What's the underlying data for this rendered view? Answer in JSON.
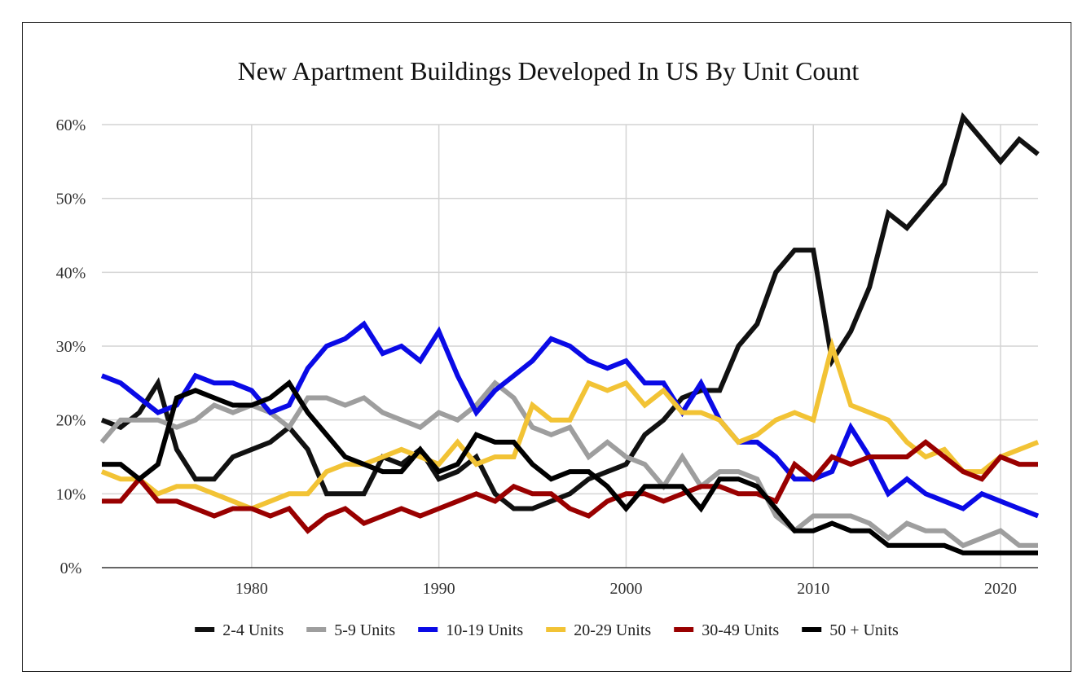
{
  "chart_data": {
    "type": "line",
    "title": "New Apartment Buildings Developed In US By Unit Count",
    "xlabel": "",
    "ylabel": "",
    "xlim": [
      1972,
      2022
    ],
    "ylim": [
      0,
      60
    ],
    "x_ticks": [
      1980,
      1990,
      2000,
      2010,
      2020
    ],
    "y_ticks": [
      0,
      10,
      20,
      30,
      40,
      50,
      60
    ],
    "y_tick_labels": [
      "0%",
      "10%",
      "20%",
      "30%",
      "40%",
      "50%",
      "60%"
    ],
    "grid": true,
    "legend_position": "bottom",
    "x": [
      1972,
      1973,
      1974,
      1975,
      1976,
      1977,
      1978,
      1979,
      1980,
      1981,
      1982,
      1983,
      1984,
      1985,
      1986,
      1987,
      1988,
      1989,
      1990,
      1991,
      1992,
      1993,
      1994,
      1995,
      1996,
      1997,
      1998,
      1999,
      2000,
      2001,
      2002,
      2003,
      2004,
      2005,
      2006,
      2007,
      2008,
      2009,
      2010,
      2011,
      2012,
      2013,
      2014,
      2015,
      2016,
      2017,
      2018,
      2019,
      2020,
      2021,
      2022
    ],
    "series": [
      {
        "name": "2-4 Units",
        "color": "#111111",
        "values": [
          20,
          19,
          21,
          25,
          16,
          12,
          12,
          15,
          16,
          17,
          19,
          16,
          10,
          10,
          10,
          15,
          14,
          16,
          12,
          13,
          15,
          10,
          8,
          8,
          9,
          10,
          12,
          13,
          14,
          18,
          20,
          23,
          24,
          24,
          30,
          33,
          40,
          43,
          43,
          28,
          32,
          38,
          48,
          46,
          49,
          52,
          61,
          58,
          55,
          58,
          56
        ]
      },
      {
        "name": "5-9 Units",
        "color": "#9e9e9e",
        "values": [
          17,
          20,
          20,
          20,
          19,
          20,
          22,
          21,
          22,
          21,
          19,
          23,
          23,
          22,
          23,
          21,
          20,
          19,
          21,
          20,
          22,
          25,
          23,
          19,
          18,
          19,
          15,
          17,
          15,
          14,
          11,
          15,
          11,
          13,
          13,
          12,
          7,
          5,
          7,
          7,
          7,
          6,
          4,
          6,
          5,
          5,
          3,
          4,
          5,
          3,
          3
        ]
      },
      {
        "name": "10-19 Units",
        "color": "#0a0ae6",
        "values": [
          26,
          25,
          23,
          21,
          22,
          26,
          25,
          25,
          24,
          21,
          22,
          27,
          30,
          31,
          33,
          29,
          30,
          28,
          32,
          26,
          21,
          24,
          26,
          28,
          31,
          30,
          28,
          27,
          28,
          25,
          25,
          21,
          25,
          20,
          17,
          17,
          15,
          12,
          12,
          13,
          19,
          15,
          10,
          12,
          10,
          9,
          8,
          10,
          9,
          8,
          7
        ]
      },
      {
        "name": "20-29 Units",
        "color": "#f2c335",
        "values": [
          13,
          12,
          12,
          10,
          11,
          11,
          10,
          9,
          8,
          9,
          10,
          10,
          13,
          14,
          14,
          15,
          16,
          15,
          14,
          17,
          14,
          15,
          15,
          22,
          20,
          20,
          25,
          24,
          25,
          22,
          24,
          21,
          21,
          20,
          17,
          18,
          20,
          21,
          20,
          30,
          22,
          21,
          20,
          17,
          15,
          16,
          13,
          13,
          15,
          16,
          17
        ]
      },
      {
        "name": "30-49 Units",
        "color": "#990000",
        "values": [
          9,
          9,
          12,
          9,
          9,
          8,
          7,
          8,
          8,
          7,
          8,
          5,
          7,
          8,
          6,
          7,
          8,
          7,
          8,
          9,
          10,
          9,
          11,
          10,
          10,
          8,
          7,
          9,
          10,
          10,
          9,
          10,
          11,
          11,
          10,
          10,
          9,
          14,
          12,
          15,
          14,
          15,
          15,
          15,
          17,
          15,
          13,
          12,
          15,
          14,
          14
        ]
      },
      {
        "name": "50 + Units",
        "color": "#000000",
        "values": [
          14,
          14,
          12,
          14,
          23,
          24,
          23,
          22,
          22,
          23,
          25,
          21,
          18,
          15,
          14,
          13,
          13,
          16,
          13,
          14,
          18,
          17,
          17,
          14,
          12,
          13,
          13,
          11,
          8,
          11,
          11,
          11,
          8,
          12,
          12,
          11,
          8,
          5,
          5,
          6,
          5,
          5,
          3,
          3,
          3,
          3,
          2,
          2,
          2,
          2,
          2
        ]
      }
    ]
  }
}
